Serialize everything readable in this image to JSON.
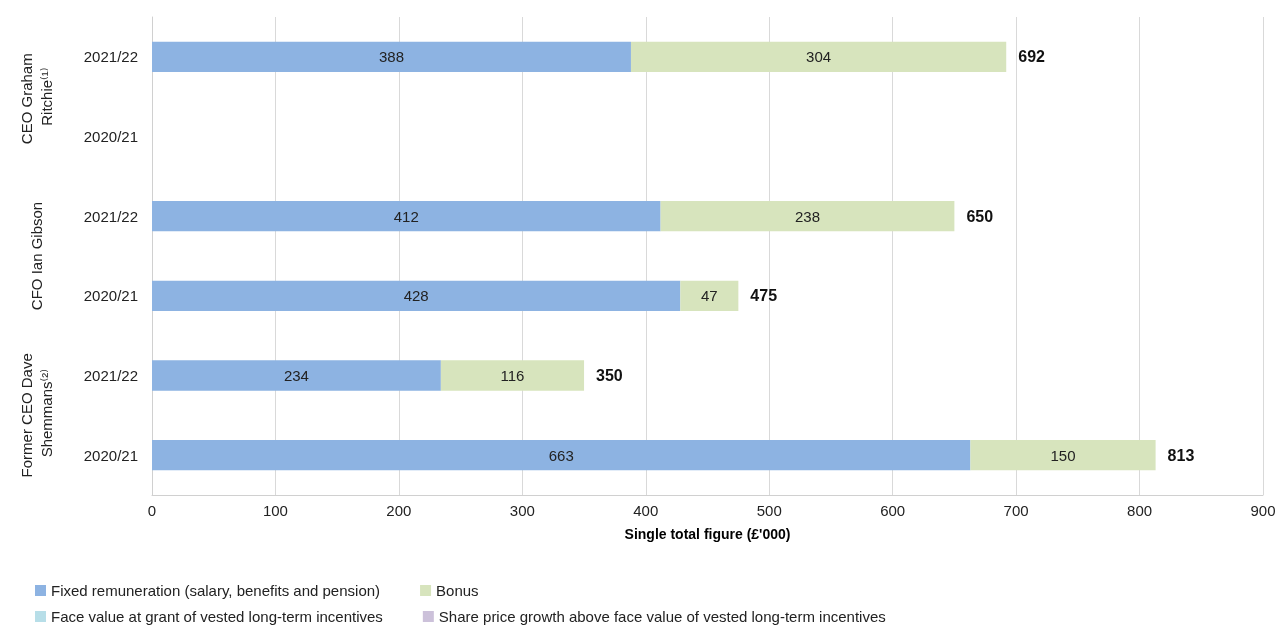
{
  "chart_data": {
    "type": "bar",
    "orientation": "horizontal",
    "stacked": true,
    "categories": [
      "2021/22",
      "2020/21",
      "2021/22",
      "2020/21",
      "2021/22",
      "2020/21"
    ],
    "series": [
      {
        "name": "Fixed remuneration (salary, benefits and pension)",
        "color": "#8db3e2",
        "values": [
          388,
          null,
          412,
          428,
          234,
          663
        ]
      },
      {
        "name": "Bonus",
        "color": "#d7e4bd",
        "values": [
          304,
          null,
          238,
          47,
          116,
          150
        ]
      },
      {
        "name": "Face value at grant of vested long-term incentives",
        "color": "#b7dee8",
        "values": [
          null,
          null,
          null,
          null,
          null,
          null
        ]
      },
      {
        "name": "Share price growth above face value of vested long-term incentives",
        "color": "#ccc1da",
        "values": [
          null,
          null,
          null,
          null,
          null,
          null
        ]
      }
    ],
    "totals": [
      "692",
      null,
      "650",
      "475",
      "350",
      "813"
    ],
    "data_labels": true,
    "xlabel": "Single total figure (£'000)",
    "xlim": [
      0,
      900
    ],
    "xticks": [
      0,
      100,
      200,
      300,
      400,
      500,
      600,
      700,
      800,
      900
    ],
    "grid": "x",
    "legend": "bottom",
    "annotations": [
      "CEO Graham Ritchie⁽¹⁾",
      "CFO Ian Gibson",
      "Former CEO Dave Shemmans⁽²⁾"
    ]
  }
}
